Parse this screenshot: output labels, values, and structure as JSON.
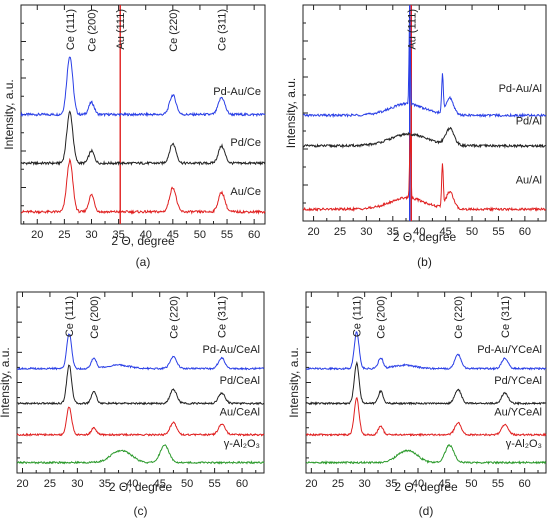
{
  "chart_data": [
    {
      "type": "line",
      "panel_label": "(a)",
      "xlabel": "2 Θ, degree",
      "ylabel": "Intensity, a.u.",
      "xlim": [
        17,
        62
      ],
      "xticks": [
        20,
        25,
        30,
        35,
        40,
        45,
        50,
        55,
        60
      ],
      "peak_labels": [
        {
          "text": "Ce (111)",
          "x": 26
        },
        {
          "text": "Ce (200)",
          "x": 30
        },
        {
          "text": "Au (111)",
          "x": 35.3
        },
        {
          "text": "Ce (220)",
          "x": 45
        },
        {
          "text": "Ce (311)",
          "x": 54
        }
      ],
      "reference_lines": [
        {
          "x": 35.3,
          "color": "#e02020"
        }
      ],
      "series": [
        {
          "name": "Pd-Au/Ce",
          "color": "#2a3fe6",
          "offset": 2.25,
          "baseline": 0.0,
          "peaks": [
            [
              26,
              1.2,
              0.55
            ],
            [
              30,
              0.25,
              0.5
            ],
            [
              45,
              0.4,
              0.6
            ],
            [
              54,
              0.35,
              0.6
            ]
          ]
        },
        {
          "name": "Pd/Ce",
          "color": "#222222",
          "offset": 1.25,
          "baseline": 0.0,
          "peaks": [
            [
              26,
              1.05,
              0.55
            ],
            [
              30,
              0.25,
              0.5
            ],
            [
              45,
              0.4,
              0.6
            ],
            [
              54,
              0.35,
              0.6
            ]
          ]
        },
        {
          "name": "Au/Ce",
          "color": "#e02020",
          "offset": 0.25,
          "baseline": 0.0,
          "peaks": [
            [
              26,
              1.05,
              0.55
            ],
            [
              30,
              0.35,
              0.5
            ],
            [
              45,
              0.5,
              0.6
            ],
            [
              54,
              0.4,
              0.6
            ]
          ]
        }
      ]
    },
    {
      "type": "line",
      "panel_label": "(b)",
      "xlabel": "2 Θ, degree",
      "ylabel": "Intensity, a.u.",
      "xlim": [
        18,
        64
      ],
      "xticks": [
        20,
        25,
        30,
        35,
        40,
        45,
        50,
        55,
        60
      ],
      "peak_labels": [
        {
          "text": "Au (111)",
          "x": 38.5
        }
      ],
      "reference_lines": [
        {
          "x": 38.2,
          "color": "#2a3fe6"
        },
        {
          "x": 38.5,
          "color": "#e02020"
        }
      ],
      "series": [
        {
          "name": "Pd-Au/Al",
          "color": "#2a3fe6",
          "offset": 2.25,
          "baseline": 0.15,
          "peaks": [
            [
              38.2,
              2.0,
              0.12
            ],
            [
              44.4,
              0.8,
              0.15
            ],
            [
              45.8,
              0.35,
              0.7
            ],
            [
              37.5,
              0.1,
              2.5
            ]
          ]
        },
        {
          "name": "Pd/Al",
          "color": "#222222",
          "offset": 1.6,
          "baseline": 0.15,
          "peaks": [
            [
              45.8,
              0.35,
              0.8
            ],
            [
              38,
              0.1,
              3
            ]
          ]
        },
        {
          "name": "Au/Al",
          "color": "#e02020",
          "offset": 0.25,
          "baseline": 0.15,
          "peaks": [
            [
              38.3,
              1.45,
              0.12
            ],
            [
              44.4,
              0.9,
              0.15
            ],
            [
              45.8,
              0.35,
              0.7
            ],
            [
              37.5,
              0.1,
              2.5
            ]
          ]
        }
      ]
    },
    {
      "type": "line",
      "panel_label": "(c)",
      "xlabel": "2 Θ, degree",
      "ylabel": "Intensity, a.u.",
      "xlim": [
        19,
        64
      ],
      "xticks": [
        20,
        25,
        30,
        35,
        40,
        45,
        50,
        55,
        60
      ],
      "peak_labels": [
        {
          "text": "Ce (111)",
          "x": 28.5
        },
        {
          "text": "Ce (200)",
          "x": 33
        },
        {
          "text": "Ce (220)",
          "x": 47.5
        },
        {
          "text": "Ce (311)",
          "x": 56.3
        }
      ],
      "reference_lines": [],
      "series": [
        {
          "name": "Pd-Au/CeAl",
          "color": "#2a3fe6",
          "offset": 3.0,
          "baseline": 0.0,
          "peaks": [
            [
              28.5,
              1.0,
              0.45
            ],
            [
              33,
              0.3,
              0.45
            ],
            [
              37.5,
              0.1,
              2
            ],
            [
              47.5,
              0.35,
              0.6
            ],
            [
              56.3,
              0.3,
              0.6
            ]
          ]
        },
        {
          "name": "Pd/CeAl",
          "color": "#222222",
          "offset": 2.0,
          "baseline": 0.0,
          "peaks": [
            [
              28.5,
              1.1,
              0.45
            ],
            [
              33,
              0.35,
              0.45
            ],
            [
              47.5,
              0.4,
              0.6
            ],
            [
              56.3,
              0.3,
              0.6
            ]
          ]
        },
        {
          "name": "Au/CeAl",
          "color": "#e02020",
          "offset": 1.1,
          "baseline": 0.0,
          "peaks": [
            [
              28.5,
              0.8,
              0.45
            ],
            [
              33,
              0.2,
              0.45
            ],
            [
              47.5,
              0.35,
              0.6
            ],
            [
              56.3,
              0.3,
              0.6
            ]
          ]
        },
        {
          "name": "γ-Al₂O₃",
          "color": "#2c9a2c",
          "offset": 0.3,
          "baseline": 0.0,
          "peaks": [
            [
              37.5,
              0.3,
              1.6
            ],
            [
              45.9,
              0.5,
              0.8
            ],
            [
              39.5,
              0.12,
              1.2
            ]
          ]
        }
      ]
    },
    {
      "type": "line",
      "panel_label": "(d)",
      "xlabel": "2 Θ, degree",
      "ylabel": "Intensity, a.u.",
      "xlim": [
        19,
        64
      ],
      "xticks": [
        20,
        25,
        30,
        35,
        40,
        45,
        50,
        55,
        60
      ],
      "peak_labels": [
        {
          "text": "Ce (111)",
          "x": 28.5
        },
        {
          "text": "Ce (200)",
          "x": 33
        },
        {
          "text": "Ce (220)",
          "x": 47.5
        },
        {
          "text": "Ce (311)",
          "x": 56.3
        }
      ],
      "reference_lines": [],
      "series": [
        {
          "name": "Pd-Au/YCeAl",
          "color": "#2a3fe6",
          "offset": 3.0,
          "baseline": 0.0,
          "peaks": [
            [
              28.5,
              1.05,
              0.45
            ],
            [
              33,
              0.3,
              0.45
            ],
            [
              37.5,
              0.1,
              2
            ],
            [
              47.5,
              0.4,
              0.6
            ],
            [
              56.3,
              0.3,
              0.6
            ]
          ]
        },
        {
          "name": "Pd/YCeAl",
          "color": "#222222",
          "offset": 2.0,
          "baseline": 0.0,
          "peaks": [
            [
              28.5,
              1.15,
              0.45
            ],
            [
              33,
              0.35,
              0.45
            ],
            [
              47.5,
              0.4,
              0.6
            ],
            [
              56.3,
              0.3,
              0.6
            ]
          ]
        },
        {
          "name": "Au/YCeAl",
          "color": "#e02020",
          "offset": 1.1,
          "baseline": 0.0,
          "peaks": [
            [
              28.5,
              1.05,
              0.45
            ],
            [
              33,
              0.25,
              0.45
            ],
            [
              47.5,
              0.35,
              0.6
            ],
            [
              56.3,
              0.3,
              0.6
            ]
          ]
        },
        {
          "name": "γ-Al₂O₃",
          "color": "#2c9a2c",
          "offset": 0.3,
          "baseline": 0.0,
          "peaks": [
            [
              37.5,
              0.3,
              1.6
            ],
            [
              45.9,
              0.5,
              0.8
            ],
            [
              39.5,
              0.12,
              1.2
            ]
          ]
        }
      ]
    }
  ]
}
